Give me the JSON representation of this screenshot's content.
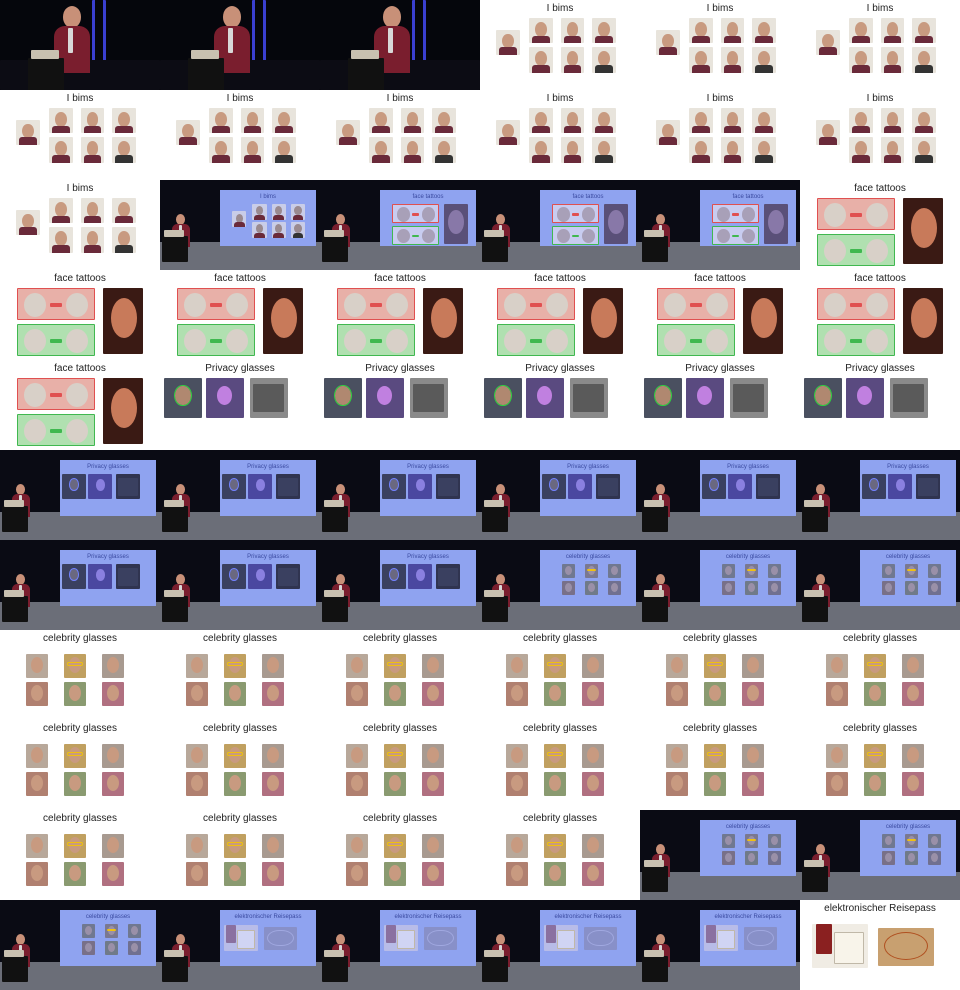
{
  "grid": {
    "columns": 6,
    "frames": [
      {
        "kind": "stage",
        "variant": "dark"
      },
      {
        "kind": "stage",
        "variant": "dark"
      },
      {
        "kind": "stage",
        "variant": "dark"
      },
      {
        "kind": "slide",
        "title": "I bims",
        "slide": "bims"
      },
      {
        "kind": "slide",
        "title": "I bims",
        "slide": "bims"
      },
      {
        "kind": "slide",
        "title": "I bims",
        "slide": "bims"
      },
      {
        "kind": "slide",
        "title": "I bims",
        "slide": "bims"
      },
      {
        "kind": "slide",
        "title": "I bims",
        "slide": "bims"
      },
      {
        "kind": "slide",
        "title": "I bims",
        "slide": "bims"
      },
      {
        "kind": "slide",
        "title": "I bims",
        "slide": "bims"
      },
      {
        "kind": "slide",
        "title": "I bims",
        "slide": "bims"
      },
      {
        "kind": "slide",
        "title": "I bims",
        "slide": "bims"
      },
      {
        "kind": "slide",
        "title": "I bims",
        "slide": "bims"
      },
      {
        "kind": "stage",
        "variant": "projector",
        "screen_title": "I bims",
        "slide": "bims"
      },
      {
        "kind": "stage",
        "variant": "projector",
        "screen_title": "face tattoos",
        "slide": "tattoos"
      },
      {
        "kind": "stage",
        "variant": "projector",
        "screen_title": "face tattoos",
        "slide": "tattoos"
      },
      {
        "kind": "stage",
        "variant": "projector",
        "screen_title": "face tattoos",
        "slide": "tattoos"
      },
      {
        "kind": "slide",
        "title": "face tattoos",
        "slide": "tattoos"
      },
      {
        "kind": "slide",
        "title": "face tattoos",
        "slide": "tattoos"
      },
      {
        "kind": "slide",
        "title": "face tattoos",
        "slide": "tattoos"
      },
      {
        "kind": "slide",
        "title": "face tattoos",
        "slide": "tattoos"
      },
      {
        "kind": "slide",
        "title": "face tattoos",
        "slide": "tattoos"
      },
      {
        "kind": "slide",
        "title": "face tattoos",
        "slide": "tattoos"
      },
      {
        "kind": "slide",
        "title": "face tattoos",
        "slide": "tattoos"
      },
      {
        "kind": "slide",
        "title": "face tattoos",
        "slide": "tattoos"
      },
      {
        "kind": "slide",
        "title": "Privacy glasses",
        "slide": "privacy"
      },
      {
        "kind": "slide",
        "title": "Privacy glasses",
        "slide": "privacy"
      },
      {
        "kind": "slide",
        "title": "Privacy glasses",
        "slide": "privacy"
      },
      {
        "kind": "slide",
        "title": "Privacy glasses",
        "slide": "privacy"
      },
      {
        "kind": "slide",
        "title": "Privacy glasses",
        "slide": "privacy"
      },
      {
        "kind": "stage",
        "variant": "projector",
        "screen_title": "Privacy glasses",
        "slide": "privacy"
      },
      {
        "kind": "stage",
        "variant": "projector",
        "screen_title": "Privacy glasses",
        "slide": "privacy"
      },
      {
        "kind": "stage",
        "variant": "projector",
        "screen_title": "Privacy glasses",
        "slide": "privacy"
      },
      {
        "kind": "stage",
        "variant": "projector",
        "screen_title": "Privacy glasses",
        "slide": "privacy"
      },
      {
        "kind": "stage",
        "variant": "projector",
        "screen_title": "Privacy glasses",
        "slide": "privacy"
      },
      {
        "kind": "stage",
        "variant": "projector",
        "screen_title": "Privacy glasses",
        "slide": "privacy"
      },
      {
        "kind": "stage",
        "variant": "projector",
        "screen_title": "Privacy glasses",
        "slide": "privacy"
      },
      {
        "kind": "stage",
        "variant": "projector",
        "screen_title": "Privacy glasses",
        "slide": "privacy"
      },
      {
        "kind": "stage",
        "variant": "projector",
        "screen_title": "Privacy glasses",
        "slide": "privacy"
      },
      {
        "kind": "stage",
        "variant": "projector",
        "screen_title": "celebrity glasses",
        "slide": "celebrity"
      },
      {
        "kind": "stage",
        "variant": "projector",
        "screen_title": "celebrity glasses",
        "slide": "celebrity"
      },
      {
        "kind": "stage",
        "variant": "projector",
        "screen_title": "celebrity glasses",
        "slide": "celebrity"
      },
      {
        "kind": "slide",
        "title": "celebrity glasses",
        "slide": "celebrity"
      },
      {
        "kind": "slide",
        "title": "celebrity glasses",
        "slide": "celebrity"
      },
      {
        "kind": "slide",
        "title": "celebrity glasses",
        "slide": "celebrity"
      },
      {
        "kind": "slide",
        "title": "celebrity glasses",
        "slide": "celebrity"
      },
      {
        "kind": "slide",
        "title": "celebrity glasses",
        "slide": "celebrity"
      },
      {
        "kind": "slide",
        "title": "celebrity glasses",
        "slide": "celebrity"
      },
      {
        "kind": "slide",
        "title": "celebrity glasses",
        "slide": "celebrity"
      },
      {
        "kind": "slide",
        "title": "celebrity glasses",
        "slide": "celebrity"
      },
      {
        "kind": "slide",
        "title": "celebrity glasses",
        "slide": "celebrity"
      },
      {
        "kind": "slide",
        "title": "celebrity glasses",
        "slide": "celebrity"
      },
      {
        "kind": "slide",
        "title": "celebrity glasses",
        "slide": "celebrity"
      },
      {
        "kind": "slide",
        "title": "celebrity glasses",
        "slide": "celebrity"
      },
      {
        "kind": "slide",
        "title": "celebrity glasses",
        "slide": "celebrity"
      },
      {
        "kind": "slide",
        "title": "celebrity glasses",
        "slide": "celebrity"
      },
      {
        "kind": "slide",
        "title": "celebrity glasses",
        "slide": "celebrity"
      },
      {
        "kind": "slide",
        "title": "celebrity glasses",
        "slide": "celebrity"
      },
      {
        "kind": "stage",
        "variant": "projector",
        "screen_title": "celebrity glasses",
        "slide": "celebrity"
      },
      {
        "kind": "stage",
        "variant": "projector",
        "screen_title": "celebrity glasses",
        "slide": "celebrity"
      },
      {
        "kind": "stage",
        "variant": "projector",
        "screen_title": "celebrity glasses",
        "slide": "celebrity"
      },
      {
        "kind": "stage",
        "variant": "projector",
        "screen_title": "elektronischer Reisepass",
        "slide": "passport"
      },
      {
        "kind": "stage",
        "variant": "projector",
        "screen_title": "elektronischer Reisepass",
        "slide": "passport"
      },
      {
        "kind": "stage",
        "variant": "projector",
        "screen_title": "elektronischer Reisepass",
        "slide": "passport"
      },
      {
        "kind": "stage",
        "variant": "projector",
        "screen_title": "elektronischer Reisepass",
        "slide": "passport"
      },
      {
        "kind": "slide",
        "title": "elektronischer Reisepass",
        "slide": "passport"
      }
    ]
  },
  "colors": {
    "projector_screen": "#8fa3f0",
    "stage_dark": "#05060c",
    "stage_floor": "#6b6e78",
    "truss": "#3a3fd0",
    "jacket": "#7a1e2e",
    "red_frame": "#e05050",
    "green_frame": "#40b850",
    "skin": "#c89a80",
    "passport": "#8a2020",
    "glasses_yellow": "#f0c010"
  }
}
